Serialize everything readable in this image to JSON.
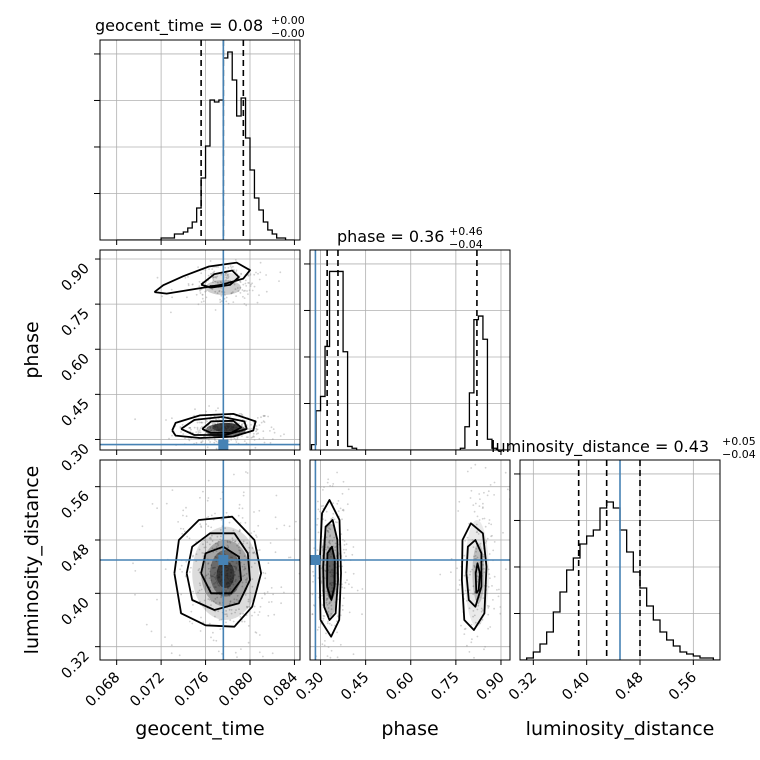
{
  "parameters": [
    "geocent_time",
    "phase",
    "luminosity_distance"
  ],
  "titles": {
    "geocent_time": {
      "name": "geocent_time",
      "median": "0.08",
      "plus": "+0.00",
      "minus": "−0.00"
    },
    "phase": {
      "name": "phase",
      "median": "0.36",
      "plus": "+0.46",
      "minus": "−0.04"
    },
    "luminosity_distance": {
      "name": "luminosity_distance",
      "median": "0.43",
      "plus": "+0.05",
      "minus": "−0.04"
    }
  },
  "chart_data": {
    "type": "corner",
    "colors": {
      "histogram": "#000000",
      "truth": "#4682b4",
      "grid": "#b0b0b0",
      "contour": "#000000",
      "points": "#9a9a9a"
    },
    "grid": true,
    "axes": {
      "geocent_time": {
        "range": [
          0.0665,
          0.0845
        ],
        "ticks": [
          0.068,
          0.072,
          0.076,
          0.08,
          0.084
        ],
        "tick_labels": [
          "0.068",
          "0.072",
          "0.076",
          "0.080",
          "0.084"
        ]
      },
      "phase": {
        "range": [
          0.265,
          0.93
        ],
        "ticks": [
          0.3,
          0.45,
          0.6,
          0.75,
          0.9
        ],
        "tick_labels": [
          "0.30",
          "0.45",
          "0.60",
          "0.75",
          "0.90"
        ]
      },
      "luminosity_distance": {
        "range": [
          0.3,
          0.6
        ],
        "ticks": [
          0.32,
          0.4,
          0.48,
          0.56
        ],
        "tick_labels": [
          "0.32",
          "0.40",
          "0.48",
          "0.56"
        ]
      }
    },
    "truths": {
      "geocent_time": 0.0776,
      "phase": 0.283,
      "luminosity_distance": 0.45
    },
    "quantiles": {
      "geocent_time": [
        0.0756,
        0.0776,
        0.0794
      ],
      "phase": [
        0.322,
        0.358,
        0.82
      ],
      "luminosity_distance": [
        0.388,
        0.43,
        0.48
      ]
    },
    "histograms": {
      "geocent_time": {
        "edges": [
          0.068,
          0.0684,
          0.0688,
          0.0692,
          0.0696,
          0.07,
          0.0704,
          0.0708,
          0.0712,
          0.0716,
          0.072,
          0.0724,
          0.0728,
          0.0732,
          0.0736,
          0.074,
          0.0744,
          0.0748,
          0.0752,
          0.0756,
          0.076,
          0.0764,
          0.0768,
          0.0772,
          0.0776,
          0.078,
          0.0784,
          0.0788,
          0.0792,
          0.0796,
          0.08,
          0.0804,
          0.0808,
          0.0812,
          0.0816,
          0.082,
          0.0824,
          0.0828,
          0.0832,
          0.0836,
          0.084
        ],
        "counts": [
          0,
          0,
          0,
          0,
          0,
          0,
          0,
          0,
          0,
          0,
          1,
          1,
          1,
          3,
          3,
          4,
          6,
          9,
          16,
          31,
          47,
          70,
          69,
          70,
          91,
          94,
          80,
          62,
          71,
          51,
          35,
          21,
          15,
          9,
          5,
          3,
          1,
          1,
          0,
          0
        ],
        "ymax": 100
      },
      "phase": {
        "edges": [
          0.27,
          0.285,
          0.3,
          0.315,
          0.33,
          0.345,
          0.36,
          0.375,
          0.39,
          0.405,
          0.42,
          0.435,
          0.45,
          0.465,
          0.48,
          0.495,
          0.51,
          0.525,
          0.54,
          0.555,
          0.57,
          0.585,
          0.6,
          0.615,
          0.63,
          0.645,
          0.66,
          0.675,
          0.69,
          0.705,
          0.72,
          0.735,
          0.75,
          0.765,
          0.78,
          0.795,
          0.81,
          0.825,
          0.84,
          0.855,
          0.87,
          0.885,
          0.9,
          0.915,
          0.93
        ],
        "counts": [
          3,
          22,
          30,
          58,
          100,
          100,
          100,
          55,
          2,
          1,
          0,
          0,
          0,
          0,
          0,
          0,
          0,
          0,
          0,
          0,
          0,
          0,
          0,
          0,
          0,
          0,
          0,
          0,
          0,
          0,
          0,
          0,
          0,
          1,
          13,
          32,
          73,
          75,
          62,
          6,
          1,
          0,
          0,
          0
        ],
        "ymax": 112
      },
      "luminosity_distance": {
        "edges": [
          0.3,
          0.31,
          0.32,
          0.33,
          0.34,
          0.35,
          0.36,
          0.37,
          0.38,
          0.39,
          0.4,
          0.41,
          0.42,
          0.43,
          0.44,
          0.45,
          0.46,
          0.47,
          0.48,
          0.49,
          0.5,
          0.51,
          0.52,
          0.53,
          0.54,
          0.55,
          0.56,
          0.57,
          0.58,
          0.59,
          0.6
        ],
        "counts": [
          0,
          1,
          4,
          8,
          14,
          24,
          34,
          45,
          51,
          58,
          62,
          65,
          76,
          79,
          76,
          65,
          54,
          44,
          36,
          27,
          20,
          14,
          10,
          7,
          4,
          3,
          2,
          1,
          1,
          0
        ],
        "ymax": 100
      }
    },
    "pairs": [
      {
        "x": "geocent_time",
        "y": "phase",
        "density": [
          {
            "x": 0.0778,
            "y": 0.33,
            "w": 0.0018,
            "h": 0.025,
            "a": 0.95
          },
          {
            "x": 0.0778,
            "y": 0.34,
            "w": 0.0012,
            "h": 0.015,
            "a": 0.9
          },
          {
            "x": 0.0776,
            "y": 0.805,
            "w": 0.0016,
            "h": 0.025,
            "a": 0.35
          },
          {
            "x": 0.0778,
            "y": 0.835,
            "w": 0.0012,
            "h": 0.02,
            "a": 0.2
          }
        ],
        "contours": [
          [
            [
              0.0714,
              0.79
            ],
            [
              0.0722,
              0.813
            ],
            [
              0.074,
              0.843
            ],
            [
              0.0763,
              0.875
            ],
            [
              0.0788,
              0.888
            ],
            [
              0.08,
              0.863
            ],
            [
              0.0794,
              0.835
            ],
            [
              0.0775,
              0.815
            ],
            [
              0.0745,
              0.797
            ],
            [
              0.0725,
              0.785
            ],
            [
              0.0714,
              0.79
            ]
          ],
          [
            [
              0.0756,
              0.815
            ],
            [
              0.0768,
              0.85
            ],
            [
              0.0784,
              0.862
            ],
            [
              0.079,
              0.84
            ],
            [
              0.0782,
              0.814
            ],
            [
              0.0765,
              0.805
            ],
            [
              0.0756,
              0.815
            ]
          ],
          [
            [
              0.0764,
              0.81
            ],
            [
              0.0772,
              0.81
            ]
          ],
          [
            [
              0.073,
              0.33
            ],
            [
              0.0733,
              0.355
            ],
            [
              0.0755,
              0.38
            ],
            [
              0.0785,
              0.385
            ],
            [
              0.0805,
              0.36
            ],
            [
              0.0803,
              0.33
            ],
            [
              0.0785,
              0.31
            ],
            [
              0.0755,
              0.305
            ],
            [
              0.0733,
              0.313
            ],
            [
              0.073,
              0.33
            ]
          ],
          [
            [
              0.0738,
              0.335
            ],
            [
              0.075,
              0.365
            ],
            [
              0.0775,
              0.375
            ],
            [
              0.0795,
              0.36
            ],
            [
              0.0797,
              0.335
            ],
            [
              0.0778,
              0.315
            ],
            [
              0.075,
              0.315
            ],
            [
              0.0738,
              0.335
            ]
          ],
          [
            [
              0.0757,
              0.335
            ],
            [
              0.0765,
              0.36
            ],
            [
              0.0785,
              0.362
            ],
            [
              0.0792,
              0.34
            ],
            [
              0.0783,
              0.322
            ],
            [
              0.0765,
              0.322
            ],
            [
              0.0757,
              0.335
            ]
          ]
        ]
      },
      {
        "x": "geocent_time",
        "y": "luminosity_distance",
        "density": [
          {
            "x": 0.0778,
            "y": 0.43,
            "w": 0.003,
            "h": 0.07,
            "a": 0.25
          },
          {
            "x": 0.0778,
            "y": 0.43,
            "w": 0.0022,
            "h": 0.05,
            "a": 0.45
          },
          {
            "x": 0.0778,
            "y": 0.43,
            "w": 0.0014,
            "h": 0.035,
            "a": 0.65
          },
          {
            "x": 0.0778,
            "y": 0.428,
            "w": 0.0008,
            "h": 0.02,
            "a": 0.85
          }
        ],
        "contours": [
          [
            [
              0.0732,
              0.43
            ],
            [
              0.0736,
              0.48
            ],
            [
              0.0754,
              0.51
            ],
            [
              0.0784,
              0.515
            ],
            [
              0.0804,
              0.48
            ],
            [
              0.081,
              0.43
            ],
            [
              0.0802,
              0.38
            ],
            [
              0.0786,
              0.35
            ],
            [
              0.076,
              0.352
            ],
            [
              0.0738,
              0.37
            ],
            [
              0.0732,
              0.43
            ]
          ],
          [
            [
              0.0743,
              0.43
            ],
            [
              0.0748,
              0.47
            ],
            [
              0.0764,
              0.49
            ],
            [
              0.0786,
              0.49
            ],
            [
              0.0798,
              0.46
            ],
            [
              0.08,
              0.42
            ],
            [
              0.079,
              0.385
            ],
            [
              0.0768,
              0.375
            ],
            [
              0.0748,
              0.39
            ],
            [
              0.0743,
              0.43
            ]
          ],
          [
            [
              0.0756,
              0.43
            ],
            [
              0.076,
              0.46
            ],
            [
              0.0776,
              0.47
            ],
            [
              0.079,
              0.455
            ],
            [
              0.0792,
              0.42
            ],
            [
              0.0783,
              0.4
            ],
            [
              0.0765,
              0.4
            ],
            [
              0.0756,
              0.43
            ]
          ]
        ]
      },
      {
        "x": "phase",
        "y": "luminosity_distance",
        "density": [
          {
            "x": 0.332,
            "y": 0.435,
            "w": 0.03,
            "h": 0.07,
            "a": 0.5
          },
          {
            "x": 0.335,
            "y": 0.43,
            "w": 0.018,
            "h": 0.04,
            "a": 0.85
          },
          {
            "x": 0.82,
            "y": 0.43,
            "w": 0.04,
            "h": 0.08,
            "a": 0.15
          },
          {
            "x": 0.825,
            "y": 0.43,
            "w": 0.02,
            "h": 0.045,
            "a": 0.35
          }
        ],
        "contours": [
          [
            [
              0.3,
              0.36
            ],
            [
              0.297,
              0.44
            ],
            [
              0.305,
              0.52
            ],
            [
              0.33,
              0.54
            ],
            [
              0.363,
              0.51
            ],
            [
              0.368,
              0.43
            ],
            [
              0.362,
              0.36
            ],
            [
              0.335,
              0.335
            ],
            [
              0.3,
              0.36
            ]
          ],
          [
            [
              0.312,
              0.38
            ],
            [
              0.309,
              0.44
            ],
            [
              0.317,
              0.5
            ],
            [
              0.34,
              0.51
            ],
            [
              0.356,
              0.48
            ],
            [
              0.358,
              0.42
            ],
            [
              0.35,
              0.37
            ],
            [
              0.33,
              0.36
            ],
            [
              0.312,
              0.38
            ]
          ],
          [
            [
              0.322,
              0.41
            ],
            [
              0.323,
              0.46
            ],
            [
              0.338,
              0.47
            ],
            [
              0.347,
              0.45
            ],
            [
              0.346,
              0.41
            ],
            [
              0.336,
              0.39
            ],
            [
              0.322,
              0.41
            ]
          ],
          [
            [
              0.77,
              0.42
            ],
            [
              0.772,
              0.48
            ],
            [
              0.8,
              0.505
            ],
            [
              0.84,
              0.49
            ],
            [
              0.852,
              0.44
            ],
            [
              0.845,
              0.37
            ],
            [
              0.81,
              0.345
            ],
            [
              0.778,
              0.36
            ],
            [
              0.77,
              0.42
            ]
          ],
          [
            [
              0.785,
              0.43
            ],
            [
              0.79,
              0.47
            ],
            [
              0.815,
              0.48
            ],
            [
              0.835,
              0.46
            ],
            [
              0.835,
              0.41
            ],
            [
              0.815,
              0.38
            ],
            [
              0.793,
              0.39
            ],
            [
              0.785,
              0.43
            ]
          ],
          [
            [
              0.818,
              0.4
            ],
            [
              0.816,
              0.43
            ],
            [
              0.822,
              0.445
            ],
            [
              0.83,
              0.43
            ],
            [
              0.826,
              0.405
            ],
            [
              0.818,
              0.4
            ]
          ]
        ]
      }
    ]
  }
}
